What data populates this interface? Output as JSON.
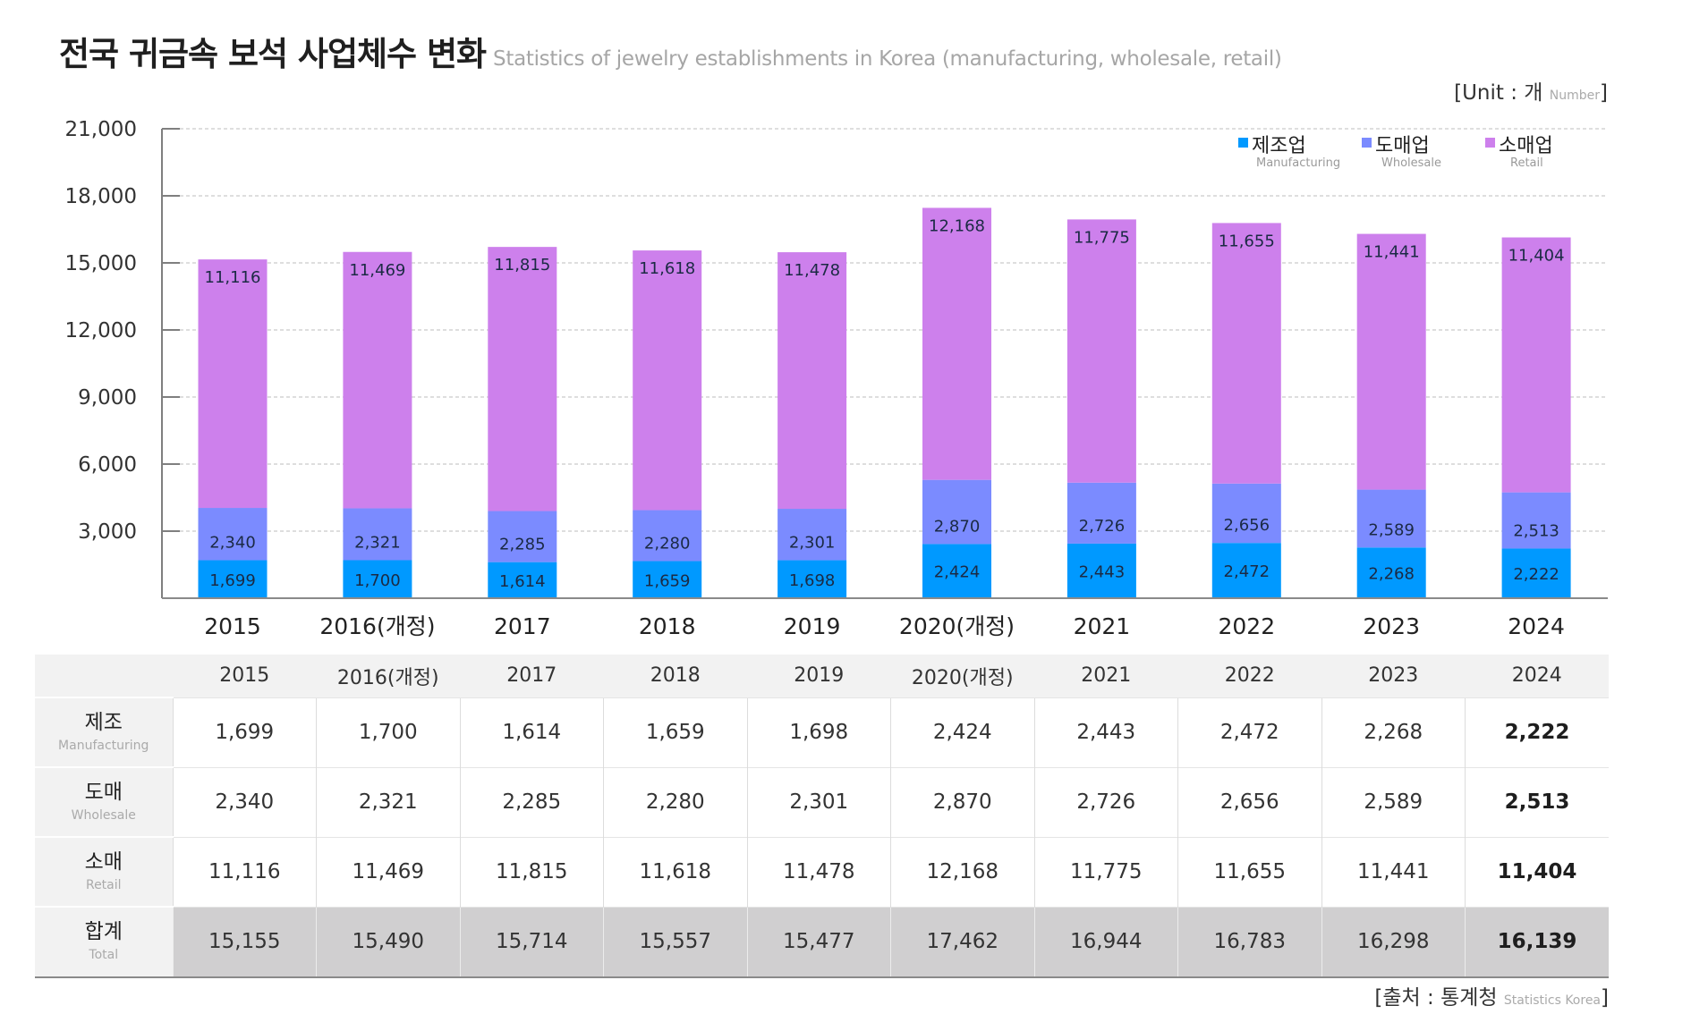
{
  "title": {
    "korean": "전국 귀금속 보석 사업체수 변화",
    "english": "Statistics of jewelry establishments in Korea (manufacturing, wholesale, retail)"
  },
  "unit": {
    "prefix": "[Unit : 개 ",
    "small": "Number",
    "suffix": "]"
  },
  "source": {
    "prefix": "[출처 : 통계청 ",
    "small": "Statistics Korea",
    "suffix": "]"
  },
  "colors": {
    "manufacturing": "#0099FF",
    "wholesale": "#7B8BFF",
    "retail": "#CD80EC",
    "label_text": "#1B2A44",
    "total_row_bg": "#D0CFD0",
    "header_bg": "#F2F2F2"
  },
  "legend": [
    {
      "key": "manufacturing",
      "label": "제조업",
      "sublabel": "Manufacturing"
    },
    {
      "key": "wholesale",
      "label": "도매업",
      "sublabel": "Wholesale"
    },
    {
      "key": "retail",
      "label": "소매업",
      "sublabel": "Retail"
    }
  ],
  "chart_data": {
    "type": "bar",
    "stacked": true,
    "title": "전국 귀금속 보석 사업체수 변화",
    "subtitle": "Statistics of jewelry establishments in Korea (manufacturing, wholesale, retail)",
    "xlabel": "",
    "ylabel": "",
    "unit": "개 (Number)",
    "categories": [
      "2015",
      "2016(개정)",
      "2017",
      "2018",
      "2019",
      "2020(개정)",
      "2021",
      "2022",
      "2023",
      "2024"
    ],
    "series": [
      {
        "name": "제조업",
        "name_en": "Manufacturing",
        "key": "manufacturing",
        "values": [
          1699,
          1700,
          1614,
          1659,
          1698,
          2424,
          2443,
          2472,
          2268,
          2222
        ]
      },
      {
        "name": "도매업",
        "name_en": "Wholesale",
        "key": "wholesale",
        "values": [
          2340,
          2321,
          2285,
          2280,
          2301,
          2870,
          2726,
          2656,
          2589,
          2513
        ]
      },
      {
        "name": "소매업",
        "name_en": "Retail",
        "key": "retail",
        "values": [
          11116,
          11469,
          11815,
          11618,
          11478,
          12168,
          11775,
          11655,
          11441,
          11404
        ]
      }
    ],
    "ylim": [
      0,
      21000
    ],
    "yticks": [
      3000,
      6000,
      9000,
      12000,
      15000,
      18000,
      21000
    ],
    "ytick_labels": [
      "3,000",
      "6,000",
      "9,000",
      "12,000",
      "15,000",
      "18,000",
      "21,000"
    ],
    "grid": true,
    "legend_position": "top-right",
    "data_labels": true
  },
  "table": {
    "columns": [
      "2015",
      "2016(개정)",
      "2017",
      "2018",
      "2019",
      "2020(개정)",
      "2021",
      "2022",
      "2023",
      "2024"
    ],
    "rows": [
      {
        "label": "제조",
        "sublabel": "Manufacturing",
        "values": [
          "1,699",
          "1,700",
          "1,614",
          "1,659",
          "1,698",
          "2,424",
          "2,443",
          "2,472",
          "2,268",
          "2,222"
        ]
      },
      {
        "label": "도매",
        "sublabel": "Wholesale",
        "values": [
          "2,340",
          "2,321",
          "2,285",
          "2,280",
          "2,301",
          "2,870",
          "2,726",
          "2,656",
          "2,589",
          "2,513"
        ]
      },
      {
        "label": "소매",
        "sublabel": "Retail",
        "values": [
          "11,116",
          "11,469",
          "11,815",
          "11,618",
          "11,478",
          "12,168",
          "11,775",
          "11,655",
          "11,441",
          "11,404"
        ]
      },
      {
        "label": "합계",
        "sublabel": "Total",
        "values": [
          "15,155",
          "15,490",
          "15,714",
          "15,557",
          "15,477",
          "17,462",
          "16,944",
          "16,783",
          "16,298",
          "16,139"
        ]
      }
    ]
  }
}
